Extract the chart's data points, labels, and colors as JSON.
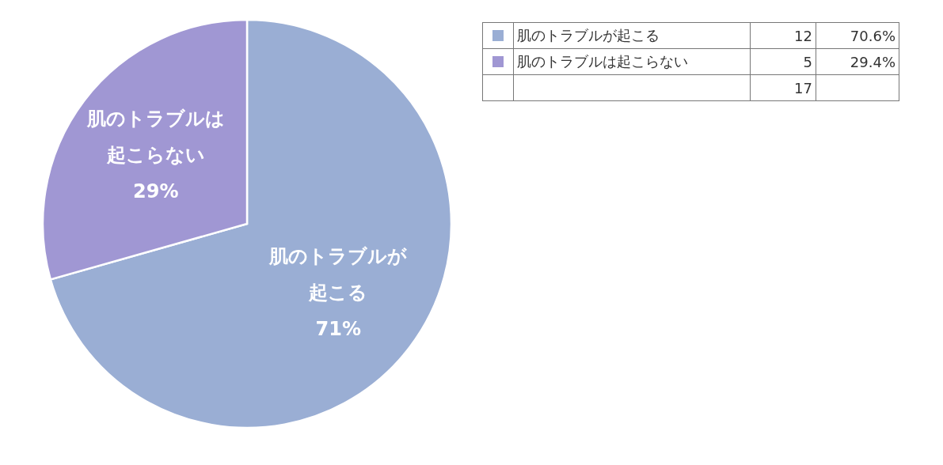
{
  "chart_data": {
    "type": "pie",
    "categories": [
      "肌のトラブルが起こる",
      "肌のトラブルは起こらない"
    ],
    "values": [
      70.6,
      29.4
    ],
    "colors": [
      "#9aaed4",
      "#a097d3"
    ],
    "value_labels": [
      "71%",
      "29%"
    ],
    "legend": "top right",
    "annotations": [
      "12",
      "5",
      "17",
      "70.6%",
      "29.4%"
    ]
  }
}
